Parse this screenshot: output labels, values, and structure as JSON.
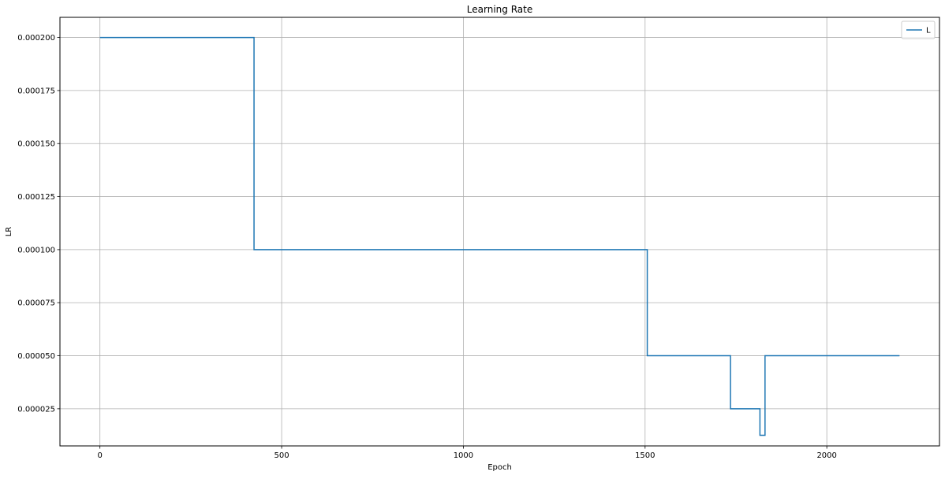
{
  "chart_data": {
    "type": "line",
    "title": "Learning Rate",
    "xlabel": "Epoch",
    "ylabel": "LR",
    "xlim": [
      -110,
      2310
    ],
    "ylim": [
      7.5e-06,
      0.0002095
    ],
    "xticks": [
      0,
      500,
      1000,
      1500,
      2000
    ],
    "xtick_labels": [
      "0",
      "500",
      "1000",
      "1500",
      "2000"
    ],
    "yticks": [
      2.5e-05,
      5e-05,
      7.5e-05,
      0.0001,
      0.000125,
      0.00015,
      0.000175,
      0.0002
    ],
    "ytick_labels": [
      "0.000025",
      "0.000050",
      "0.000075",
      "0.000100",
      "0.000125",
      "0.000150",
      "0.000175",
      "0.000200"
    ],
    "grid": true,
    "legend_position": "top-right",
    "step": "post",
    "series": [
      {
        "name": "L",
        "color": "#1f77b4",
        "x": [
          0,
          424,
          1506,
          1735,
          1816,
          1830,
          2200
        ],
        "y": [
          0.0002,
          0.0001,
          5e-05,
          2.5e-05,
          1.25e-05,
          5e-05,
          5e-05
        ]
      }
    ]
  }
}
